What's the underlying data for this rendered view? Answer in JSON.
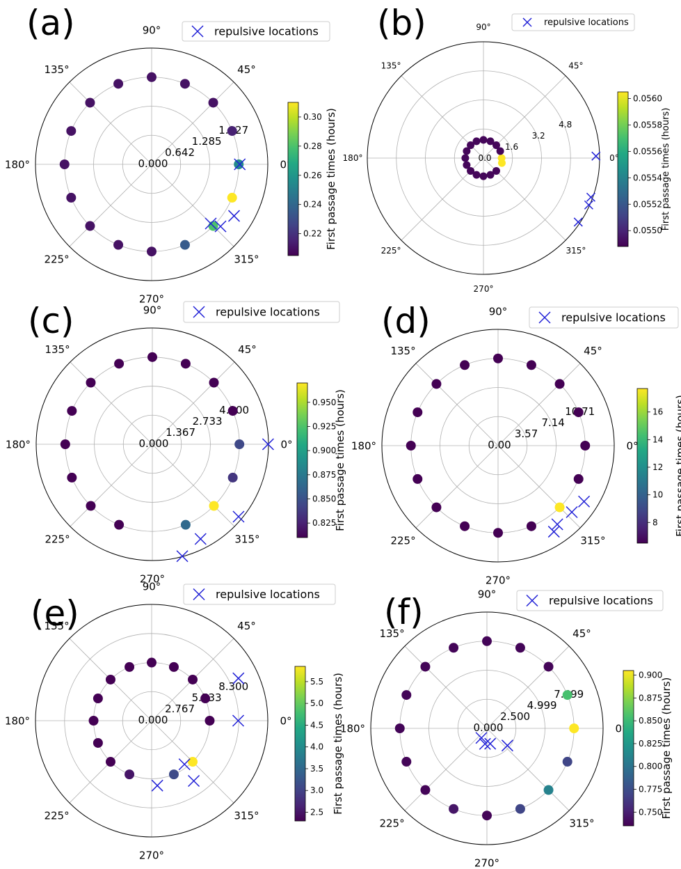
{
  "chart_data": [
    {
      "type": "scatter",
      "projection": "polar",
      "panel_label": "(a)",
      "title": "",
      "legend": "repulsive locations",
      "legend_position": "top-right",
      "grid": true,
      "angle_ticks": [
        "0°",
        "45°",
        "90°",
        "135°",
        "180°",
        "225°",
        "270°",
        "315°"
      ],
      "r_ticks": [
        "0.000",
        "0.642",
        "1.285",
        "1.927"
      ],
      "r_tick_values": [
        0,
        0.642,
        1.285,
        1.927
      ],
      "rlim": [
        0,
        2.57
      ],
      "colorbar_label": "First passage times (hours)",
      "colorbar_ticks": [
        "0.22",
        "0.24",
        "0.26",
        "0.28",
        "0.30"
      ],
      "colorbar_tick_values": [
        0.22,
        0.24,
        0.26,
        0.28,
        0.3
      ],
      "colorbar_range": [
        0.205,
        0.31
      ],
      "points": [
        {
          "theta": 0,
          "r": 1.927,
          "value": 0.255
        },
        {
          "theta": 22.5,
          "r": 1.927,
          "value": 0.215
        },
        {
          "theta": 45,
          "r": 1.927,
          "value": 0.21
        },
        {
          "theta": 67.5,
          "r": 1.927,
          "value": 0.21
        },
        {
          "theta": 90,
          "r": 1.927,
          "value": 0.21
        },
        {
          "theta": 112.5,
          "r": 1.927,
          "value": 0.21
        },
        {
          "theta": 135,
          "r": 1.927,
          "value": 0.21
        },
        {
          "theta": 157.5,
          "r": 1.927,
          "value": 0.21
        },
        {
          "theta": 180,
          "r": 1.927,
          "value": 0.21
        },
        {
          "theta": 202.5,
          "r": 1.927,
          "value": 0.21
        },
        {
          "theta": 225,
          "r": 1.927,
          "value": 0.21
        },
        {
          "theta": 247.5,
          "r": 1.927,
          "value": 0.21
        },
        {
          "theta": 270,
          "r": 1.927,
          "value": 0.21
        },
        {
          "theta": 292.5,
          "r": 1.927,
          "value": 0.235
        },
        {
          "theta": 315,
          "r": 1.927,
          "value": 0.28
        },
        {
          "theta": 337.5,
          "r": 1.927,
          "value": 0.31
        }
      ],
      "repulsive": [
        {
          "theta": 0,
          "r": 1.95
        },
        {
          "theta": 328,
          "r": 2.15
        },
        {
          "theta": 315,
          "r": 1.85
        },
        {
          "theta": 318,
          "r": 2.05
        }
      ]
    },
    {
      "type": "scatter",
      "projection": "polar",
      "panel_label": "(b)",
      "title": "",
      "legend": "repulsive locations",
      "legend_position": "top-right",
      "grid": true,
      "angle_ticks": [
        "0°",
        "45°",
        "90°",
        "135°",
        "180°",
        "225°",
        "270°",
        "315°"
      ],
      "r_ticks": [
        "0.0",
        "1.6",
        "3.2",
        "4.8"
      ],
      "r_tick_values": [
        0,
        1.6,
        3.2,
        4.8
      ],
      "rlim": [
        0,
        6.4
      ],
      "colorbar_label": "First passage times (hours)",
      "colorbar_ticks": [
        "0.0550",
        "0.0552",
        "0.0554",
        "0.0556",
        "0.0558",
        "0.0560"
      ],
      "colorbar_tick_values": [
        0.055,
        0.0552,
        0.0554,
        0.0556,
        0.0558,
        0.056
      ],
      "colorbar_range": [
        0.05488,
        0.05605
      ],
      "points": [
        {
          "theta": 0,
          "r": 1.0,
          "value": 0.05605
        },
        {
          "theta": 22.5,
          "r": 1.0,
          "value": 0.0549
        },
        {
          "theta": 45,
          "r": 1.0,
          "value": 0.0549
        },
        {
          "theta": 67.5,
          "r": 1.0,
          "value": 0.0549
        },
        {
          "theta": 90,
          "r": 1.0,
          "value": 0.0549
        },
        {
          "theta": 112.5,
          "r": 1.0,
          "value": 0.0549
        },
        {
          "theta": 135,
          "r": 1.0,
          "value": 0.0549
        },
        {
          "theta": 157.5,
          "r": 1.0,
          "value": 0.0549
        },
        {
          "theta": 180,
          "r": 1.0,
          "value": 0.0549
        },
        {
          "theta": 202.5,
          "r": 1.0,
          "value": 0.0549
        },
        {
          "theta": 225,
          "r": 1.0,
          "value": 0.0549
        },
        {
          "theta": 247.5,
          "r": 1.0,
          "value": 0.0549
        },
        {
          "theta": 270,
          "r": 1.0,
          "value": 0.0549
        },
        {
          "theta": 292.5,
          "r": 1.0,
          "value": 0.0549
        },
        {
          "theta": 315,
          "r": 1.0,
          "value": 0.0549
        },
        {
          "theta": 345,
          "r": 1.05,
          "value": 0.05605
        }
      ],
      "repulsive": [
        {
          "theta": 1,
          "r": 6.2
        },
        {
          "theta": 340,
          "r": 6.3
        },
        {
          "theta": 336,
          "r": 6.35
        },
        {
          "theta": 326,
          "r": 6.3
        }
      ]
    },
    {
      "type": "scatter",
      "projection": "polar",
      "panel_label": "(c)",
      "title": "",
      "legend": "repulsive locations",
      "legend_position": "top-right",
      "grid": true,
      "angle_ticks": [
        "0°",
        "45°",
        "90°",
        "135°",
        "180°",
        "225°",
        "270°",
        "315°"
      ],
      "r_ticks": [
        "0.000",
        "1.367",
        "2.733",
        "4.100"
      ],
      "r_tick_values": [
        0,
        1.367,
        2.733,
        4.1
      ],
      "rlim": [
        0,
        5.47
      ],
      "colorbar_label": "First passage times (hours)",
      "colorbar_ticks": [
        "0.825",
        "0.850",
        "0.875",
        "0.900",
        "0.925",
        "0.950"
      ],
      "colorbar_tick_values": [
        0.825,
        0.85,
        0.875,
        0.9,
        0.925,
        0.95
      ],
      "colorbar_range": [
        0.81,
        0.97
      ],
      "points": [
        {
          "theta": 0,
          "r": 4.1,
          "value": 0.845
        },
        {
          "theta": 22.5,
          "r": 4.1,
          "value": 0.81
        },
        {
          "theta": 45,
          "r": 4.1,
          "value": 0.81
        },
        {
          "theta": 67.5,
          "r": 4.1,
          "value": 0.81
        },
        {
          "theta": 90,
          "r": 4.1,
          "value": 0.81
        },
        {
          "theta": 112.5,
          "r": 4.1,
          "value": 0.81
        },
        {
          "theta": 135,
          "r": 4.1,
          "value": 0.81
        },
        {
          "theta": 157.5,
          "r": 4.1,
          "value": 0.81
        },
        {
          "theta": 180,
          "r": 4.1,
          "value": 0.81
        },
        {
          "theta": 202.5,
          "r": 4.1,
          "value": 0.81
        },
        {
          "theta": 225,
          "r": 4.1,
          "value": 0.81
        },
        {
          "theta": 247.5,
          "r": 4.1,
          "value": 0.81
        },
        {
          "theta": 292.5,
          "r": 4.1,
          "value": 0.865
        },
        {
          "theta": 315,
          "r": 4.1,
          "value": 0.97
        },
        {
          "theta": 337.5,
          "r": 4.1,
          "value": 0.835
        }
      ],
      "repulsive": [
        {
          "theta": 0,
          "r": 5.45
        },
        {
          "theta": 320,
          "r": 5.3
        },
        {
          "theta": 297,
          "r": 5.0
        },
        {
          "theta": 285,
          "r": 5.45
        }
      ]
    },
    {
      "type": "scatter",
      "projection": "polar",
      "panel_label": "(d)",
      "title": "",
      "legend": "repulsive locations",
      "legend_position": "top-right",
      "grid": true,
      "angle_ticks": [
        "0°",
        "45°",
        "90°",
        "135°",
        "180°",
        "225°",
        "270°",
        "315°"
      ],
      "r_ticks": [
        "0.00",
        "3.57",
        "7.14",
        "10.71"
      ],
      "r_tick_values": [
        0,
        3.57,
        7.14,
        10.71
      ],
      "rlim": [
        0,
        14.28
      ],
      "colorbar_label": "First passage times (hours)",
      "colorbar_ticks": [
        "8",
        "10",
        "12",
        "14",
        "16"
      ],
      "colorbar_tick_values": [
        8,
        10,
        12,
        14,
        16
      ],
      "colorbar_range": [
        6.5,
        17.7
      ],
      "points": [
        {
          "theta": 0,
          "r": 10.71,
          "value": 6.5
        },
        {
          "theta": 22.5,
          "r": 10.71,
          "value": 6.5
        },
        {
          "theta": 45,
          "r": 10.71,
          "value": 6.5
        },
        {
          "theta": 67.5,
          "r": 10.71,
          "value": 6.5
        },
        {
          "theta": 90,
          "r": 10.71,
          "value": 6.5
        },
        {
          "theta": 112.5,
          "r": 10.71,
          "value": 6.5
        },
        {
          "theta": 135,
          "r": 10.71,
          "value": 6.5
        },
        {
          "theta": 157.5,
          "r": 10.71,
          "value": 6.5
        },
        {
          "theta": 180,
          "r": 10.71,
          "value": 6.5
        },
        {
          "theta": 202.5,
          "r": 10.71,
          "value": 6.5
        },
        {
          "theta": 225,
          "r": 10.71,
          "value": 6.5
        },
        {
          "theta": 247.5,
          "r": 10.71,
          "value": 6.5
        },
        {
          "theta": 270,
          "r": 10.71,
          "value": 6.5
        },
        {
          "theta": 292.5,
          "r": 10.71,
          "value": 6.5
        },
        {
          "theta": 315,
          "r": 10.71,
          "value": 17.7
        },
        {
          "theta": 337.5,
          "r": 10.71,
          "value": 6.5
        }
      ],
      "repulsive": [
        {
          "theta": 327,
          "r": 12.6
        },
        {
          "theta": 318,
          "r": 12.2
        },
        {
          "theta": 307,
          "r": 12.1
        },
        {
          "theta": 303,
          "r": 12.6
        }
      ]
    },
    {
      "type": "scatter",
      "projection": "polar",
      "panel_label": "(e)",
      "title": "",
      "legend": "repulsive locations",
      "legend_position": "top-right",
      "grid": true,
      "angle_ticks": [
        "0°",
        "45°",
        "90°",
        "135°",
        "180°",
        "225°",
        "270°",
        "315°"
      ],
      "r_ticks": [
        "0.000",
        "2.767",
        "5.533",
        "8.300"
      ],
      "r_tick_values": [
        0,
        2.767,
        5.533,
        8.3
      ],
      "rlim": [
        0,
        11.07
      ],
      "colorbar_label": "First passage times (hours)",
      "colorbar_ticks": [
        "2.5",
        "3.0",
        "3.5",
        "4.0",
        "4.5",
        "5.0",
        "5.5"
      ],
      "colorbar_tick_values": [
        2.5,
        3.0,
        3.5,
        4.0,
        4.5,
        5.0,
        5.5
      ],
      "colorbar_range": [
        2.3,
        5.85
      ],
      "points": [
        {
          "theta": 0,
          "r": 5.533,
          "value": 2.3
        },
        {
          "theta": 22.5,
          "r": 5.533,
          "value": 2.3
        },
        {
          "theta": 45,
          "r": 5.533,
          "value": 2.3
        },
        {
          "theta": 67.5,
          "r": 5.533,
          "value": 2.3
        },
        {
          "theta": 90,
          "r": 5.533,
          "value": 2.3
        },
        {
          "theta": 112.5,
          "r": 5.533,
          "value": 2.3
        },
        {
          "theta": 135,
          "r": 5.533,
          "value": 2.3
        },
        {
          "theta": 157.5,
          "r": 5.533,
          "value": 2.3
        },
        {
          "theta": 180,
          "r": 5.533,
          "value": 2.3
        },
        {
          "theta": 202.5,
          "r": 5.533,
          "value": 2.3
        },
        {
          "theta": 225,
          "r": 5.533,
          "value": 2.3
        },
        {
          "theta": 247.5,
          "r": 5.533,
          "value": 2.5
        },
        {
          "theta": 292.5,
          "r": 5.533,
          "value": 3.1
        },
        {
          "theta": 315,
          "r": 5.533,
          "value": 5.85
        }
      ],
      "repulsive": [
        {
          "theta": 0,
          "r": 8.25
        },
        {
          "theta": 26,
          "r": 9.2
        },
        {
          "theta": 305,
          "r": 7.0
        },
        {
          "theta": 307,
          "r": 5.2
        },
        {
          "theta": 275,
          "r": 6.2
        }
      ]
    },
    {
      "type": "scatter",
      "projection": "polar",
      "panel_label": "(f)",
      "title": "",
      "legend": "repulsive locations",
      "legend_position": "top-right",
      "grid": true,
      "angle_ticks": [
        "0°",
        "45°",
        "90°",
        "135°",
        "180°",
        "225°",
        "270°",
        "315°"
      ],
      "r_ticks": [
        "0.000",
        "2.500",
        "4.999",
        "7.499"
      ],
      "r_tick_values": [
        0,
        2.5,
        4.999,
        7.499
      ],
      "rlim": [
        0,
        10.0
      ],
      "colorbar_label": "First passage times (hours)",
      "colorbar_ticks": [
        "0.750",
        "0.775",
        "0.800",
        "0.825",
        "0.850",
        "0.875",
        "0.900"
      ],
      "colorbar_tick_values": [
        0.75,
        0.775,
        0.8,
        0.825,
        0.85,
        0.875,
        0.9
      ],
      "colorbar_range": [
        0.735,
        0.905
      ],
      "points": [
        {
          "theta": 0,
          "r": 7.499,
          "value": 0.905
        },
        {
          "theta": 22.5,
          "r": 7.499,
          "value": 0.855
        },
        {
          "theta": 45,
          "r": 7.499,
          "value": 0.737
        },
        {
          "theta": 67.5,
          "r": 7.499,
          "value": 0.737
        },
        {
          "theta": 90,
          "r": 7.499,
          "value": 0.737
        },
        {
          "theta": 112.5,
          "r": 7.499,
          "value": 0.737
        },
        {
          "theta": 135,
          "r": 7.499,
          "value": 0.737
        },
        {
          "theta": 157.5,
          "r": 7.499,
          "value": 0.737
        },
        {
          "theta": 180,
          "r": 7.499,
          "value": 0.737
        },
        {
          "theta": 202.5,
          "r": 7.499,
          "value": 0.737
        },
        {
          "theta": 225,
          "r": 7.499,
          "value": 0.737
        },
        {
          "theta": 247.5,
          "r": 7.499,
          "value": 0.745
        },
        {
          "theta": 270,
          "r": 7.499,
          "value": 0.737
        },
        {
          "theta": 292.5,
          "r": 7.499,
          "value": 0.77
        },
        {
          "theta": 315,
          "r": 7.499,
          "value": 0.81
        },
        {
          "theta": 337.5,
          "r": 7.499,
          "value": 0.77
        }
      ],
      "repulsive": [
        {
          "theta": 320,
          "r": 2.3
        },
        {
          "theta": 263,
          "r": 1.35
        },
        {
          "theta": 282,
          "r": 1.35
        },
        {
          "theta": 240,
          "r": 0.95
        }
      ]
    }
  ]
}
